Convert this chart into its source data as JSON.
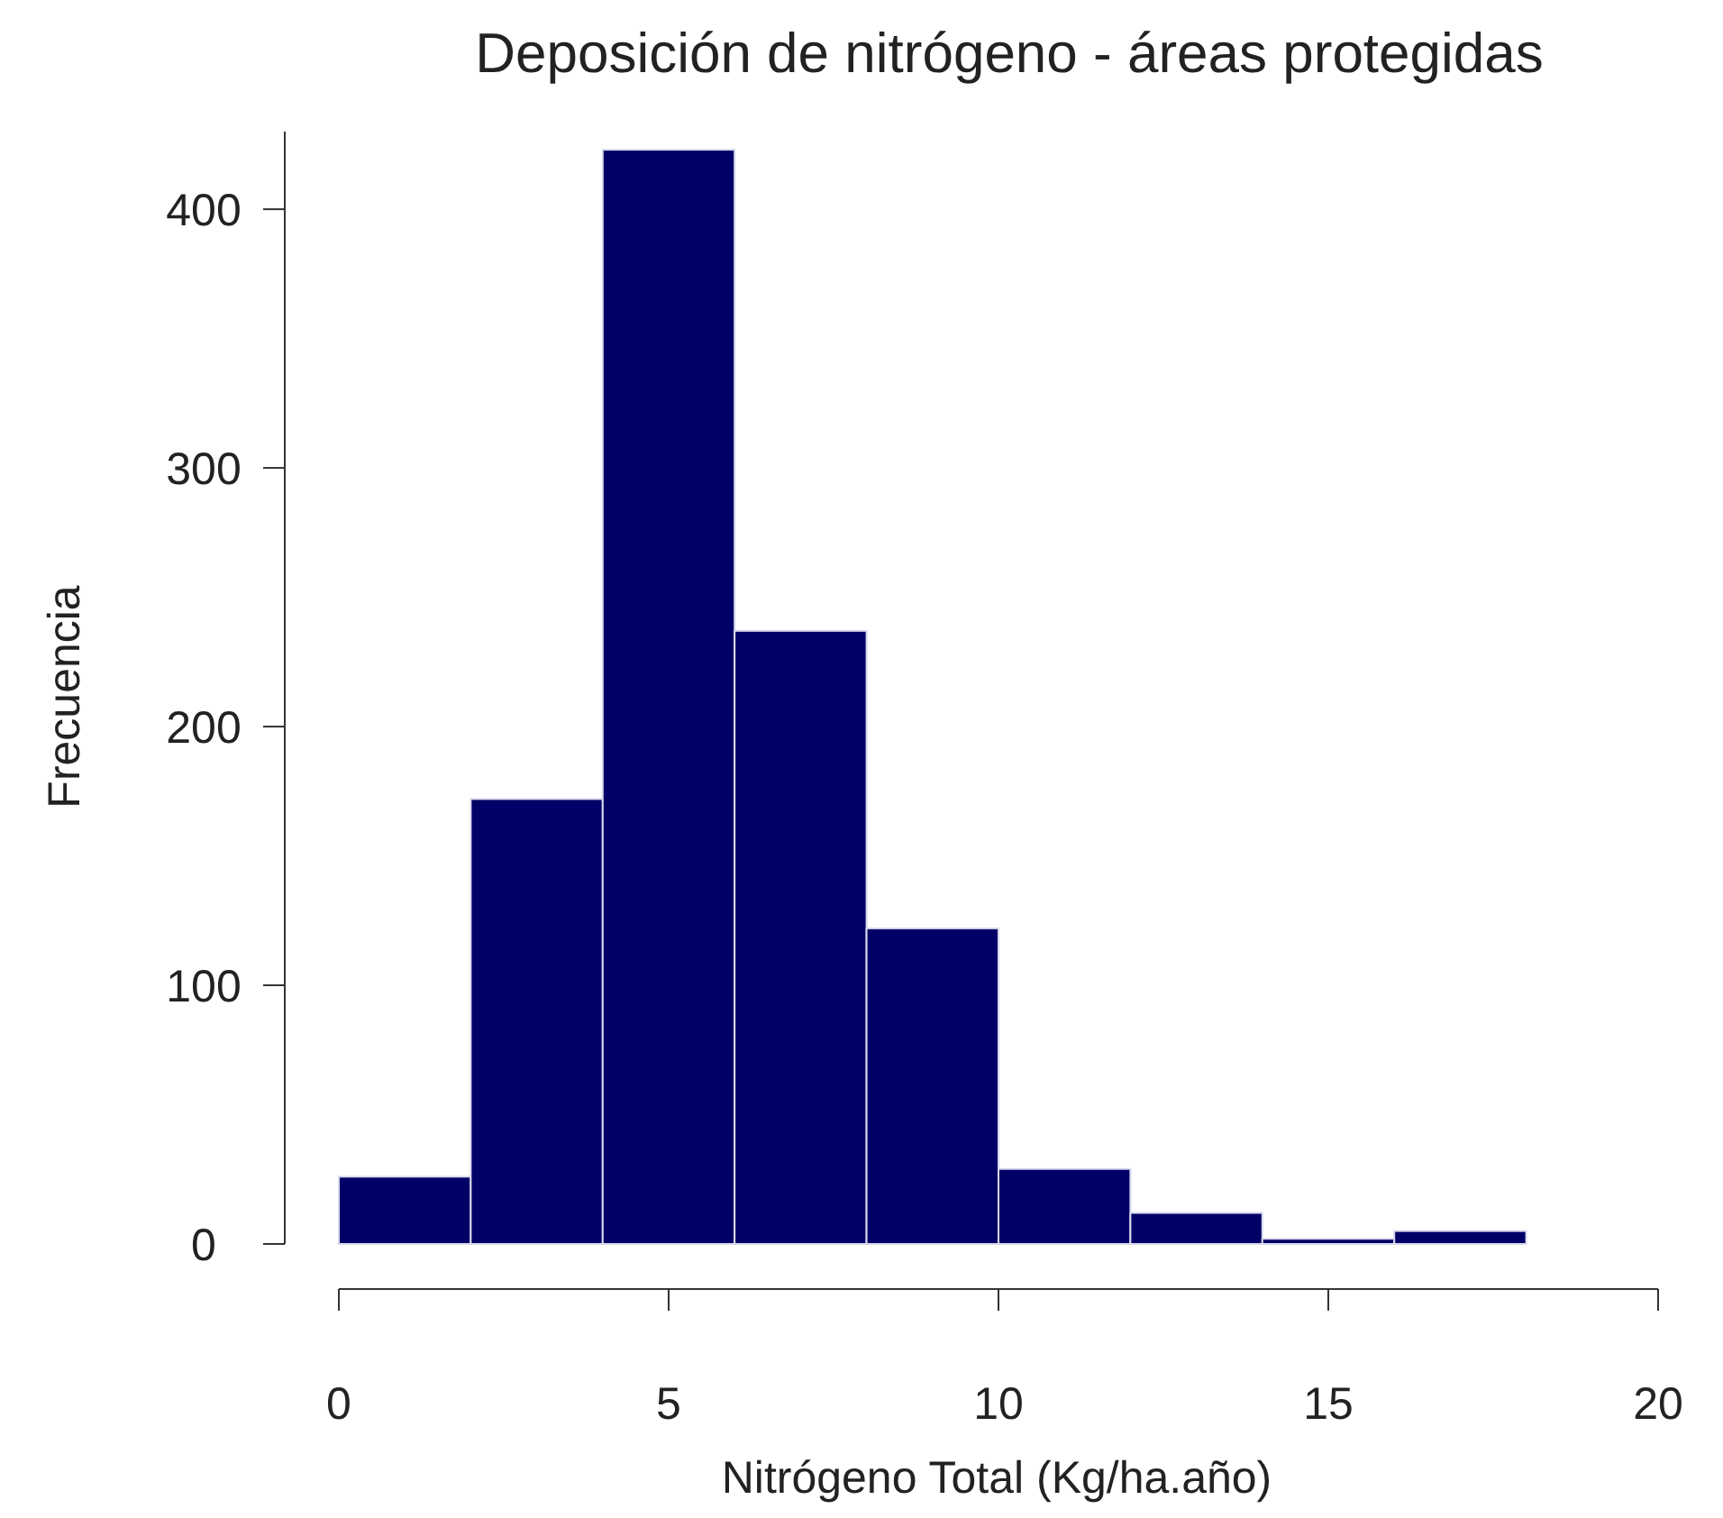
{
  "chart_data": {
    "type": "histogram",
    "title": "Deposición de nitrógeno - áreas protegidas",
    "xlabel": "Nitrógeno Total (Kg/ha.año)",
    "ylabel": "Frecuencia",
    "bins": [
      0,
      2,
      4,
      6,
      8,
      10,
      12,
      14,
      16,
      18,
      20
    ],
    "values": [
      26,
      172,
      423,
      237,
      122,
      29,
      12,
      2,
      5,
      0
    ],
    "color": "#000066",
    "xlim": [
      0,
      20
    ],
    "xticks": [
      0,
      5,
      10,
      15,
      20
    ],
    "ylim": [
      0,
      430
    ],
    "yticks": [
      0,
      100,
      200,
      300,
      400
    ],
    "grid": false
  }
}
